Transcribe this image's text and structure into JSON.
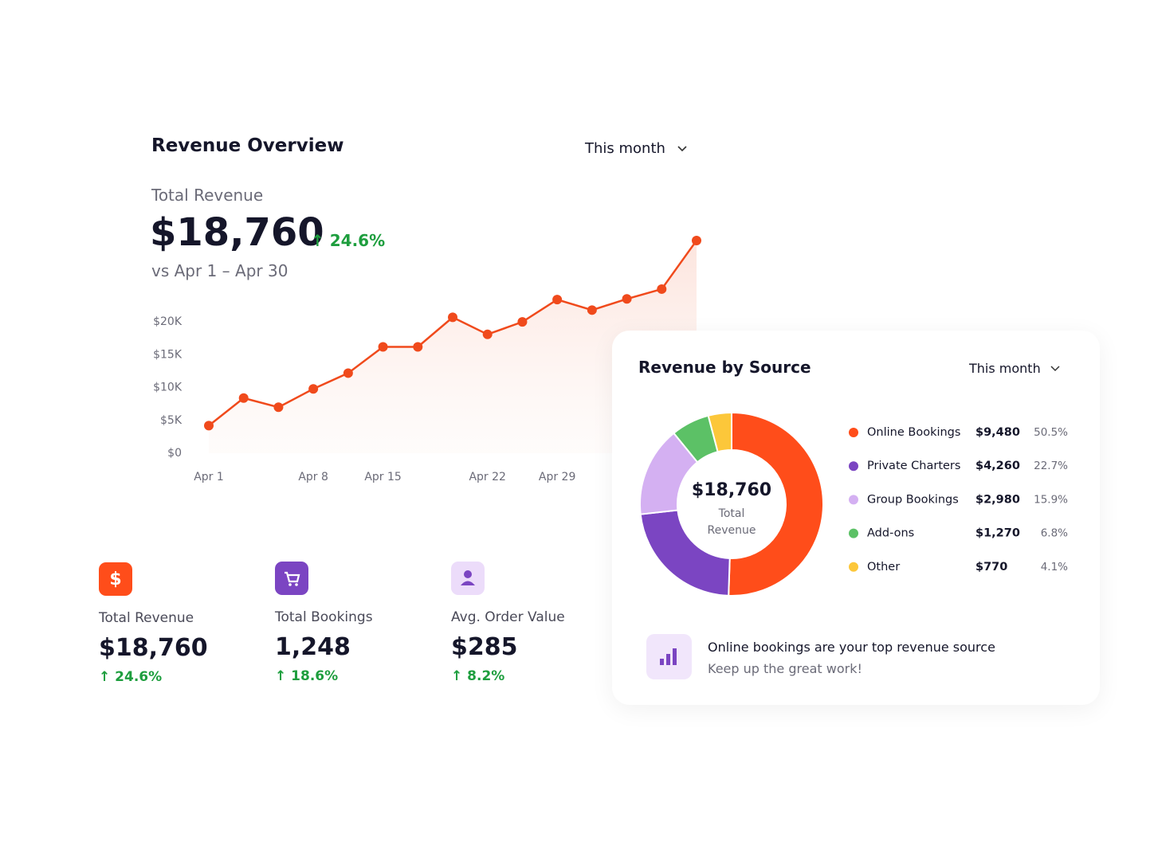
{
  "header": {
    "title": "Revenue Overview",
    "period": "This month",
    "metric_label": "Total Revenue",
    "metric_value": "$18,760",
    "metric_change": "24.6%",
    "comparison": "vs Apr 1 – Apr 30"
  },
  "chart_data": [
    {
      "type": "line",
      "color": "#f04a1c",
      "categories": [
        "Apr 1",
        null,
        null,
        "Apr 8",
        null,
        "Apr 15",
        null,
        null,
        "Apr 22",
        null,
        "Apr 29",
        null,
        null,
        null,
        null
      ],
      "values": [
        4200,
        8400,
        7000,
        9800,
        12200,
        16200,
        16200,
        20700,
        18100,
        20000,
        23400,
        21800,
        23500,
        25000,
        32400
      ],
      "ylim": [
        0,
        33000
      ],
      "yticks": [
        {
          "value": 0,
          "label": "$0"
        },
        {
          "value": 5000,
          "label": "$5K"
        },
        {
          "value": 10000,
          "label": "$10K"
        },
        {
          "value": 15000,
          "label": "$15K"
        },
        {
          "value": 20000,
          "label": "$20K"
        }
      ]
    },
    {
      "type": "pie",
      "title": "Revenue by Source",
      "period": "This month",
      "center_value": "$18,760",
      "center_label": "Total Revenue",
      "categories": [
        "Online Bookings",
        "Private Charters",
        "Group Bookings",
        "Add-ons",
        "Other"
      ],
      "values": [
        9480,
        4260,
        2980,
        1270,
        770
      ],
      "value_labels": [
        "$9,480",
        "$4,260",
        "$2,980",
        "$1,270",
        "$770"
      ],
      "share_labels": [
        "50.5%",
        "22.7%",
        "15.9%",
        "6.8%",
        "4.1%"
      ],
      "colors": [
        "#ff4d1a",
        "#7b45c2",
        "#d4b0f2",
        "#5cc166",
        "#fcc73a"
      ]
    }
  ],
  "stats": [
    {
      "label": "Total Revenue",
      "value": "$18,760",
      "change": "24.6%"
    },
    {
      "label": "Total Bookings",
      "value": "1,248",
      "change": "18.6%"
    },
    {
      "label": "Avg. Order Value",
      "value": "$285",
      "change": "8.2%"
    }
  ],
  "insight": {
    "title": "Online bookings are your top revenue source",
    "subtitle": "Keep up the great work!"
  }
}
